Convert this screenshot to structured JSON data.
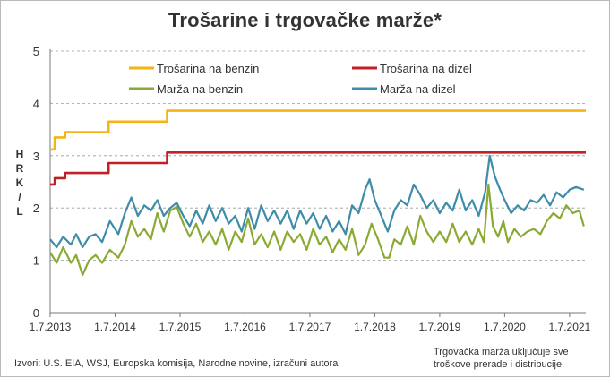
{
  "title": "Trošarine i trgovačke marže*",
  "source": "Izvori: U.S. EIA, WSJ, Europska komisija, Narodne novine, izračuni autora",
  "note": "Trgovačka marža uključuje sve troškove prerade i distribucije.",
  "chart_data": {
    "type": "line",
    "ylabel": "HRK/L",
    "ylim": [
      0,
      5
    ],
    "yticks": [
      "0",
      "1",
      "2",
      "3",
      "4",
      "5"
    ],
    "xticks": [
      "1.7.2013",
      "1.7.2014",
      "1.7.2015",
      "1.7.2016",
      "1.7.2017",
      "1.7.2018",
      "1.7.2019",
      "1.7.2020",
      "1.7.2021"
    ],
    "xlim": [
      2013.5,
      2021.75
    ],
    "grid": "horizontal dashed",
    "legend_placement": "top",
    "series": [
      {
        "name": "Trošarina na benzin",
        "color": "#f4b514",
        "step": true,
        "points": [
          [
            2013.5,
            3.12
          ],
          [
            2013.57,
            3.35
          ],
          [
            2013.73,
            3.45
          ],
          [
            2014.4,
            3.65
          ],
          [
            2015.3,
            3.86
          ],
          [
            2021.75,
            3.86
          ]
        ]
      },
      {
        "name": "Trošarina na dizel",
        "color": "#c12026",
        "step": true,
        "points": [
          [
            2013.5,
            2.45
          ],
          [
            2013.57,
            2.57
          ],
          [
            2013.73,
            2.67
          ],
          [
            2014.4,
            2.86
          ],
          [
            2015.3,
            3.06
          ],
          [
            2021.75,
            3.06
          ]
        ]
      },
      {
        "name": "Marža na benzin",
        "color": "#8aaa33",
        "step": false,
        "points": [
          [
            2013.5,
            1.15
          ],
          [
            2013.6,
            0.95
          ],
          [
            2013.7,
            1.25
          ],
          [
            2013.82,
            0.95
          ],
          [
            2013.9,
            1.1
          ],
          [
            2014.0,
            0.72
          ],
          [
            2014.1,
            1.0
          ],
          [
            2014.2,
            1.1
          ],
          [
            2014.3,
            0.95
          ],
          [
            2014.42,
            1.2
          ],
          [
            2014.55,
            1.05
          ],
          [
            2014.65,
            1.3
          ],
          [
            2014.75,
            1.75
          ],
          [
            2014.85,
            1.45
          ],
          [
            2014.95,
            1.6
          ],
          [
            2015.05,
            1.4
          ],
          [
            2015.15,
            1.9
          ],
          [
            2015.25,
            1.55
          ],
          [
            2015.35,
            1.95
          ],
          [
            2015.45,
            2.02
          ],
          [
            2015.55,
            1.7
          ],
          [
            2015.65,
            1.45
          ],
          [
            2015.75,
            1.7
          ],
          [
            2015.85,
            1.35
          ],
          [
            2015.95,
            1.55
          ],
          [
            2016.05,
            1.3
          ],
          [
            2016.15,
            1.6
          ],
          [
            2016.25,
            1.2
          ],
          [
            2016.35,
            1.55
          ],
          [
            2016.45,
            1.35
          ],
          [
            2016.55,
            1.8
          ],
          [
            2016.65,
            1.3
          ],
          [
            2016.75,
            1.5
          ],
          [
            2016.85,
            1.25
          ],
          [
            2016.95,
            1.55
          ],
          [
            2017.05,
            1.2
          ],
          [
            2017.15,
            1.55
          ],
          [
            2017.25,
            1.35
          ],
          [
            2017.35,
            1.5
          ],
          [
            2017.45,
            1.2
          ],
          [
            2017.55,
            1.6
          ],
          [
            2017.65,
            1.3
          ],
          [
            2017.75,
            1.45
          ],
          [
            2017.85,
            1.15
          ],
          [
            2017.95,
            1.4
          ],
          [
            2018.05,
            1.2
          ],
          [
            2018.15,
            1.6
          ],
          [
            2018.25,
            1.1
          ],
          [
            2018.35,
            1.3
          ],
          [
            2018.45,
            1.7
          ],
          [
            2018.55,
            1.4
          ],
          [
            2018.65,
            1.05
          ],
          [
            2018.72,
            1.05
          ],
          [
            2018.8,
            1.4
          ],
          [
            2018.9,
            1.3
          ],
          [
            2019.0,
            1.65
          ],
          [
            2019.1,
            1.3
          ],
          [
            2019.2,
            1.85
          ],
          [
            2019.3,
            1.55
          ],
          [
            2019.4,
            1.35
          ],
          [
            2019.5,
            1.55
          ],
          [
            2019.6,
            1.35
          ],
          [
            2019.7,
            1.7
          ],
          [
            2019.8,
            1.35
          ],
          [
            2019.9,
            1.55
          ],
          [
            2020.0,
            1.3
          ],
          [
            2020.1,
            1.6
          ],
          [
            2020.18,
            1.35
          ],
          [
            2020.25,
            2.45
          ],
          [
            2020.32,
            1.65
          ],
          [
            2020.4,
            1.45
          ],
          [
            2020.48,
            1.75
          ],
          [
            2020.55,
            1.35
          ],
          [
            2020.65,
            1.6
          ],
          [
            2020.75,
            1.45
          ],
          [
            2020.85,
            1.55
          ],
          [
            2020.95,
            1.6
          ],
          [
            2021.05,
            1.5
          ],
          [
            2021.15,
            1.75
          ],
          [
            2021.25,
            1.9
          ],
          [
            2021.35,
            1.8
          ],
          [
            2021.45,
            2.05
          ],
          [
            2021.55,
            1.9
          ],
          [
            2021.65,
            1.95
          ],
          [
            2021.72,
            1.65
          ]
        ]
      },
      {
        "name": "Marža na dizel",
        "color": "#3d8ca8",
        "step": false,
        "points": [
          [
            2013.5,
            1.4
          ],
          [
            2013.6,
            1.25
          ],
          [
            2013.7,
            1.45
          ],
          [
            2013.82,
            1.3
          ],
          [
            2013.9,
            1.5
          ],
          [
            2014.0,
            1.25
          ],
          [
            2014.1,
            1.45
          ],
          [
            2014.2,
            1.5
          ],
          [
            2014.3,
            1.35
          ],
          [
            2014.42,
            1.75
          ],
          [
            2014.55,
            1.5
          ],
          [
            2014.65,
            1.9
          ],
          [
            2014.75,
            2.2
          ],
          [
            2014.85,
            1.85
          ],
          [
            2014.95,
            2.05
          ],
          [
            2015.05,
            1.95
          ],
          [
            2015.15,
            2.15
          ],
          [
            2015.25,
            1.85
          ],
          [
            2015.35,
            2.0
          ],
          [
            2015.45,
            2.1
          ],
          [
            2015.55,
            1.85
          ],
          [
            2015.65,
            1.65
          ],
          [
            2015.75,
            1.95
          ],
          [
            2015.85,
            1.7
          ],
          [
            2015.95,
            2.05
          ],
          [
            2016.05,
            1.75
          ],
          [
            2016.15,
            2.0
          ],
          [
            2016.25,
            1.7
          ],
          [
            2016.35,
            1.85
          ],
          [
            2016.45,
            1.55
          ],
          [
            2016.55,
            2.0
          ],
          [
            2016.65,
            1.6
          ],
          [
            2016.75,
            2.05
          ],
          [
            2016.85,
            1.75
          ],
          [
            2016.95,
            1.95
          ],
          [
            2017.05,
            1.7
          ],
          [
            2017.15,
            1.95
          ],
          [
            2017.25,
            1.6
          ],
          [
            2017.35,
            1.95
          ],
          [
            2017.45,
            1.7
          ],
          [
            2017.55,
            1.9
          ],
          [
            2017.65,
            1.6
          ],
          [
            2017.75,
            1.85
          ],
          [
            2017.85,
            1.55
          ],
          [
            2017.95,
            1.75
          ],
          [
            2018.05,
            1.5
          ],
          [
            2018.15,
            2.05
          ],
          [
            2018.25,
            1.9
          ],
          [
            2018.35,
            2.35
          ],
          [
            2018.42,
            2.55
          ],
          [
            2018.5,
            2.15
          ],
          [
            2018.6,
            1.85
          ],
          [
            2018.7,
            1.55
          ],
          [
            2018.8,
            1.95
          ],
          [
            2018.9,
            2.15
          ],
          [
            2019.0,
            2.05
          ],
          [
            2019.1,
            2.45
          ],
          [
            2019.2,
            2.25
          ],
          [
            2019.3,
            2.0
          ],
          [
            2019.4,
            2.15
          ],
          [
            2019.5,
            1.9
          ],
          [
            2019.6,
            2.1
          ],
          [
            2019.7,
            1.95
          ],
          [
            2019.8,
            2.35
          ],
          [
            2019.9,
            1.95
          ],
          [
            2020.0,
            2.15
          ],
          [
            2020.1,
            1.85
          ],
          [
            2020.2,
            2.3
          ],
          [
            2020.27,
            3.0
          ],
          [
            2020.35,
            2.6
          ],
          [
            2020.43,
            2.35
          ],
          [
            2020.5,
            2.15
          ],
          [
            2020.6,
            1.9
          ],
          [
            2020.7,
            2.05
          ],
          [
            2020.8,
            1.95
          ],
          [
            2020.9,
            2.15
          ],
          [
            2021.0,
            2.1
          ],
          [
            2021.1,
            2.25
          ],
          [
            2021.2,
            2.05
          ],
          [
            2021.3,
            2.3
          ],
          [
            2021.4,
            2.2
          ],
          [
            2021.5,
            2.35
          ],
          [
            2021.6,
            2.4
          ],
          [
            2021.72,
            2.35
          ]
        ]
      }
    ]
  }
}
